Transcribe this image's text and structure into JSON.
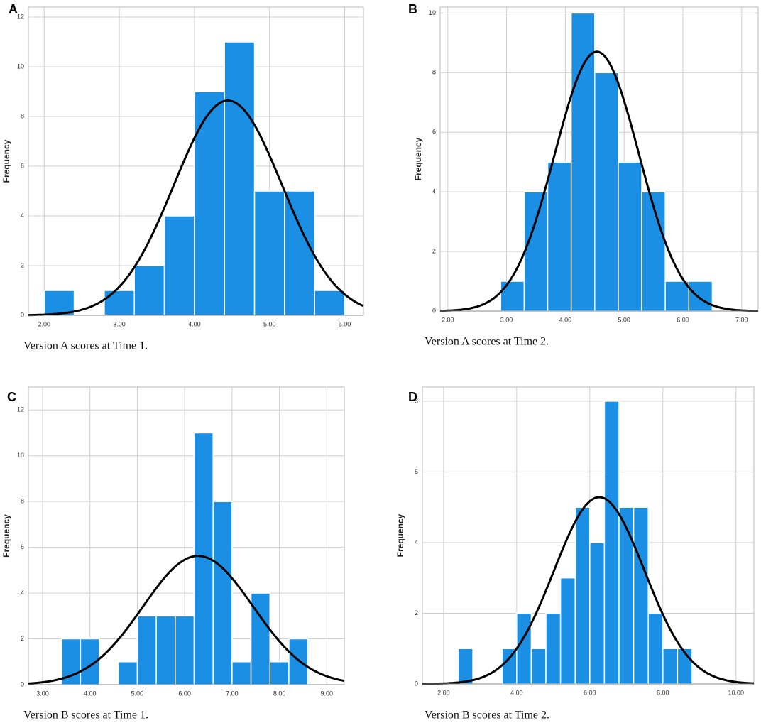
{
  "chart_data": [
    {
      "type": "histogram",
      "label": "A",
      "caption": "Version A scores at Time 1.",
      "ylabel": "Frequency",
      "color": "#1a8fe3",
      "grid": true,
      "bins": [
        2.0,
        2.4,
        2.8,
        3.2,
        3.6,
        4.0,
        4.4,
        4.8,
        5.2,
        5.6,
        6.0
      ],
      "counts": [
        1,
        0,
        1,
        2,
        4,
        9,
        11,
        5,
        5,
        1
      ],
      "xlim": [
        1.79,
        6.25
      ],
      "ylim": [
        0,
        12.4
      ],
      "xticks": [
        {
          "value": 2,
          "label": "2.00"
        },
        {
          "value": 3,
          "label": "3.00"
        },
        {
          "value": 4,
          "label": "4.00"
        },
        {
          "value": 5,
          "label": "5.00"
        },
        {
          "value": 6,
          "label": "6.00"
        }
      ],
      "yticks": [
        0,
        2,
        4,
        6,
        8,
        10,
        12
      ]
    },
    {
      "type": "histogram",
      "label": "B",
      "caption": "Version A scores at Time 2.",
      "ylabel": "Frequency",
      "color": "#1a8fe3",
      "grid": true,
      "bins": [
        2.9,
        3.3,
        3.7,
        4.1,
        4.5,
        4.9,
        5.3,
        5.7,
        6.1,
        6.5
      ],
      "counts": [
        1,
        4,
        5,
        10,
        8,
        5,
        4,
        1,
        1
      ],
      "xlim": [
        1.87,
        7.28
      ],
      "ylim": [
        0,
        10.2
      ],
      "xticks": [
        {
          "value": 2,
          "label": "2.00"
        },
        {
          "value": 3,
          "label": "3.00"
        },
        {
          "value": 4,
          "label": "4.00"
        },
        {
          "value": 5,
          "label": "5.00"
        },
        {
          "value": 6,
          "label": "6.00"
        },
        {
          "value": 7,
          "label": "7.00"
        }
      ],
      "yticks": [
        0,
        2,
        4,
        6,
        8,
        10
      ]
    },
    {
      "type": "histogram",
      "label": "C",
      "caption": "Version B scores at Time 1.",
      "ylabel": "Frequency",
      "color": "#1a8fe3",
      "grid": true,
      "bins": [
        3.4,
        3.8,
        4.2,
        4.6,
        5.0,
        5.4,
        5.8,
        6.2,
        6.6,
        7.0,
        7.4,
        7.8,
        8.2,
        8.6
      ],
      "counts": [
        2,
        2,
        0,
        1,
        3,
        3,
        3,
        11,
        8,
        1,
        4,
        1,
        2
      ],
      "xlim": [
        2.7,
        9.37
      ],
      "ylim": [
        0,
        13
      ],
      "xticks": [
        {
          "value": 3,
          "label": "3.00"
        },
        {
          "value": 4,
          "label": "4.00"
        },
        {
          "value": 5,
          "label": "5.00"
        },
        {
          "value": 6,
          "label": "6.00"
        },
        {
          "value": 7,
          "label": "7.00"
        },
        {
          "value": 8,
          "label": "8.00"
        },
        {
          "value": 9,
          "label": "9.00"
        }
      ],
      "yticks": [
        0,
        2,
        4,
        6,
        8,
        10,
        12
      ]
    },
    {
      "type": "histogram",
      "label": "D",
      "caption": "Version B scores at Time 2.",
      "ylabel": "Frequency",
      "color": "#1a8fe3",
      "grid": true,
      "bins": [
        2.4,
        2.8,
        3.2,
        3.6,
        4.0,
        4.4,
        4.8,
        5.2,
        5.6,
        6.0,
        6.4,
        6.8,
        7.2,
        7.6,
        8.0,
        8.4,
        8.8
      ],
      "counts": [
        1,
        0,
        0,
        1,
        2,
        1,
        2,
        3,
        5,
        4,
        8,
        5,
        5,
        2,
        1,
        1
      ],
      "xlim": [
        1.42,
        10.49
      ],
      "ylim": [
        0,
        8.4
      ],
      "xticks": [
        {
          "value": 2,
          "label": "2.00"
        },
        {
          "value": 4,
          "label": "4.00"
        },
        {
          "value": 6,
          "label": "6.00"
        },
        {
          "value": 8,
          "label": "8.00"
        },
        {
          "value": 10,
          "label": "10.00"
        }
      ],
      "yticks": [
        0,
        2,
        4,
        6,
        8
      ]
    }
  ]
}
